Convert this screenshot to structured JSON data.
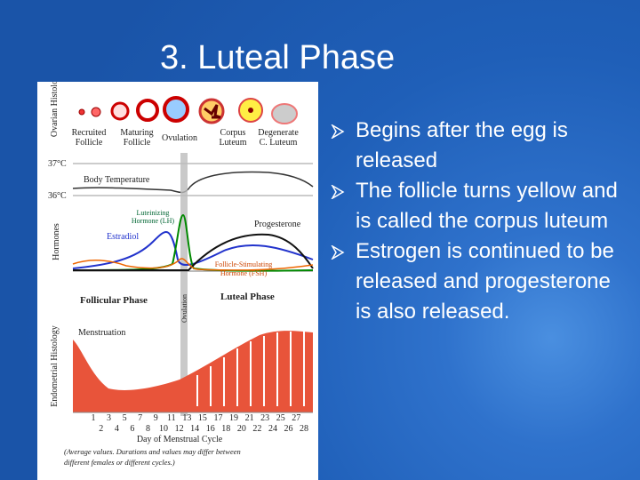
{
  "slide": {
    "title": "3.  Luteal Phase",
    "bullets": [
      "Begins after the egg is released",
      "The follicle turns yellow and is called the corpus luteum",
      "Estrogen is continued to be released and progesterone is also released."
    ]
  },
  "figure": {
    "row_labels": {
      "ovarian": "Ovarian Histology",
      "hormones": "Hormones",
      "endometrial": "Endometrial Histology"
    },
    "stages": [
      {
        "line1": "Recruited",
        "line2": "Follicle"
      },
      {
        "line1": "Maturing",
        "line2": "Follicle"
      },
      {
        "line1": "Ovulation"
      },
      {
        "line1": "Corpus",
        "line2": "Luteum"
      },
      {
        "line1": "Degenerate",
        "line2": "C. Luteum"
      }
    ],
    "temp_high": "37°C",
    "temp_low": "36°C",
    "body_temperature": "Body Temperature",
    "lh": {
      "line1": "Luteinizing",
      "line2": "Hormone (LH)"
    },
    "estradiol": "Estradiol",
    "progesterone": "Progesterone",
    "fsh": {
      "line1": "Follicle-Stimulating",
      "line2": "Hormone (FSH)"
    },
    "follicular_phase": "Follicular Phase",
    "luteal_phase": "Luteal Phase",
    "ovulation_vertical": "Ovulation",
    "menstruation": "Menstruation",
    "days_odd": [
      1,
      3,
      5,
      7,
      9,
      11,
      13,
      15,
      17,
      19,
      21,
      23,
      25,
      27
    ],
    "days_even": [
      2,
      4,
      6,
      8,
      10,
      12,
      14,
      16,
      18,
      20,
      22,
      24,
      26,
      28
    ],
    "x_axis": "Day of Menstrual Cycle",
    "note": {
      "line1": "(Average values. Durations and values may differ between",
      "line2": "different females or different cycles.)"
    }
  }
}
